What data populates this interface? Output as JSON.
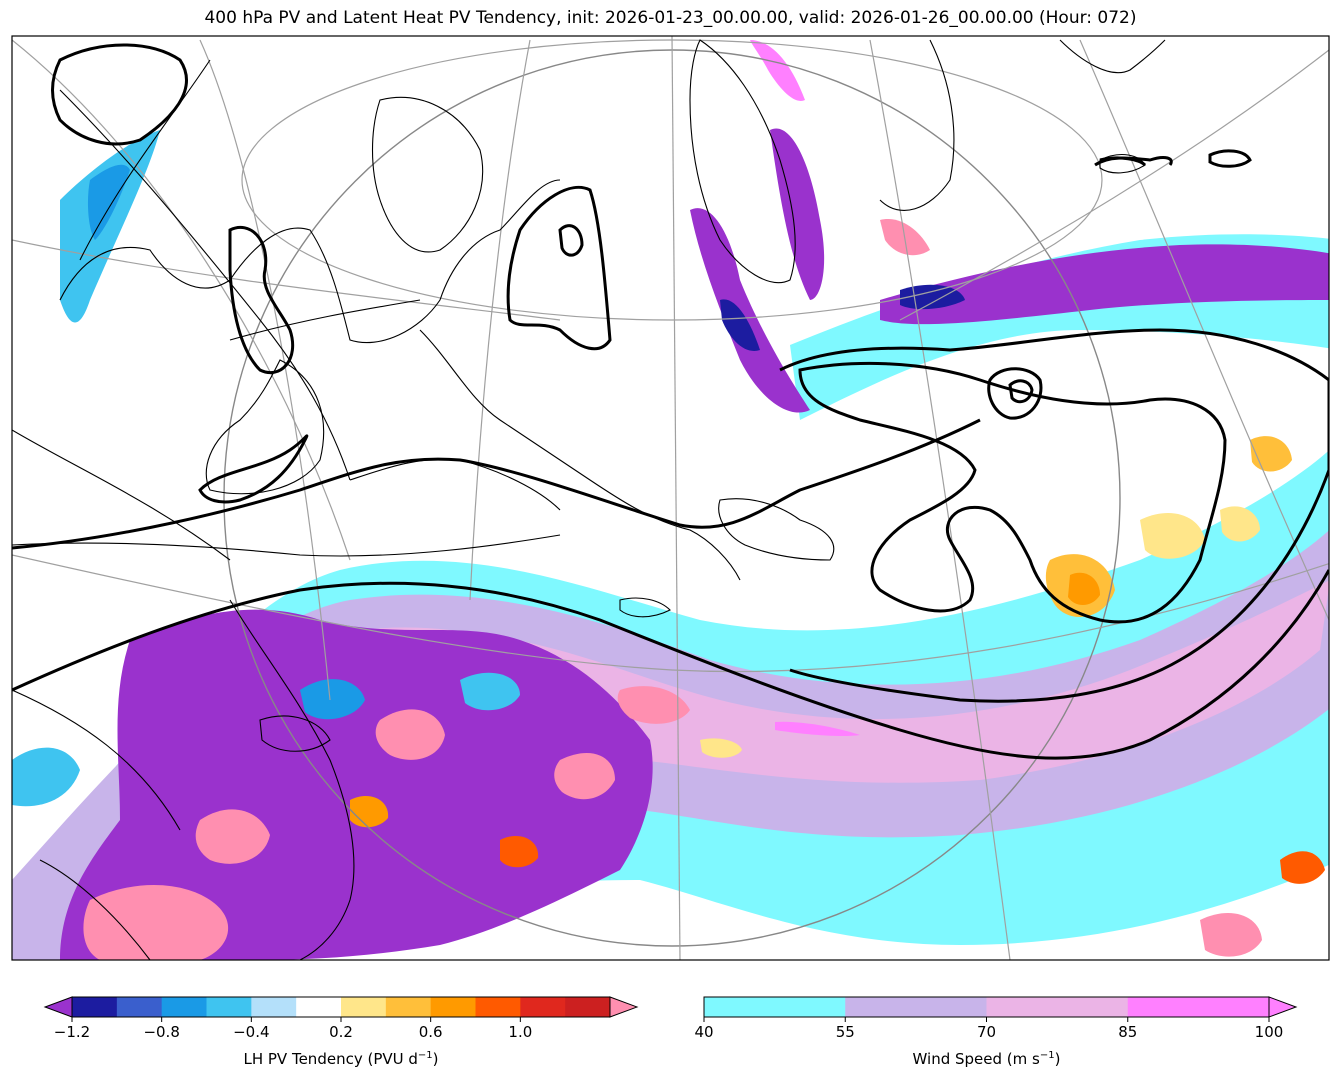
{
  "title": "400 hPa PV and Latent Heat PV Tendency, init: 2026-01-23_00.00.00, valid: 2026-01-26_00.00.00 (Hour: 072)",
  "colorbars": {
    "lh_pv": {
      "label": "LH PV Tendency (PVU d",
      "label_exp": "−1",
      "label_end": ")",
      "ticks": [
        "−1.2",
        "−0.8",
        "−0.4",
        "0.2",
        "0.6",
        "1.0"
      ],
      "tick_values": [
        -1.2,
        -0.8,
        -0.4,
        0.2,
        0.6,
        1.0
      ],
      "levels": [
        -1.2,
        -1.0,
        -0.8,
        -0.6,
        -0.4,
        -0.2,
        0.2,
        0.4,
        0.6,
        0.8,
        1.0,
        1.2
      ],
      "colors": [
        "#9a32cd",
        "#1c1ca0",
        "#3a5fcd",
        "#1a9ae6",
        "#3fc4f0",
        "#b4e0fa",
        "#ffffff",
        "#ffe68a",
        "#ffbf3a",
        "#ff9a00",
        "#ff5a00",
        "#e0281e",
        "#cc2020",
        "#ff8fb0"
      ]
    },
    "wind": {
      "label": "Wind Speed (m s",
      "label_exp": "−1",
      "label_end": ")",
      "ticks": [
        "40",
        "55",
        "70",
        "85",
        "100"
      ],
      "tick_values": [
        40,
        55,
        70,
        85,
        100
      ],
      "colors": [
        "#7ff9ff",
        "#c8b4ea",
        "#ebb4e6",
        "#ff80ff"
      ]
    }
  },
  "colors": {
    "jet_cyan": "#7ff9ff",
    "jet_lavender": "#c8b4ea",
    "jet_pink": "#ebb4e6",
    "jet_magenta": "#ff80ff",
    "purple": "#9a32cd",
    "pink": "#ff8fb0",
    "orange": "#ff9a00",
    "yellow": "#ffe68a",
    "blue": "#1a9ae6"
  }
}
